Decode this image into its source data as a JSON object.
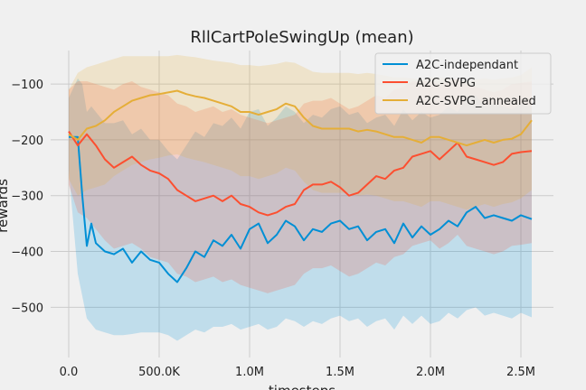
{
  "chart_data": {
    "type": "line",
    "title": "RllCartPoleSwingUp (mean)",
    "xlabel": "timesteps",
    "ylabel": "rewards",
    "xlim": [
      -100000,
      2680000
    ],
    "ylim": [
      -590,
      -40
    ],
    "xticks": [
      0,
      500000,
      1000000,
      1500000,
      2000000,
      2500000
    ],
    "xtick_labels": [
      "0.0",
      "500.0K",
      "1.0M",
      "1.5M",
      "2.0M",
      "2.5M"
    ],
    "yticks": [
      -500,
      -400,
      -300,
      -200,
      -100
    ],
    "ytick_labels": [
      "−500",
      "−400",
      "−300",
      "−200",
      "−100"
    ],
    "grid": true,
    "legend_position": "top-right",
    "series": [
      {
        "name": "A2C-independant",
        "color": "#008fd5",
        "x": [
          0,
          50000,
          75000,
          100000,
          125000,
          150000,
          200000,
          250000,
          300000,
          350000,
          400000,
          450000,
          500000,
          550000,
          600000,
          650000,
          700000,
          750000,
          800000,
          850000,
          900000,
          950000,
          1000000,
          1050000,
          1100000,
          1150000,
          1200000,
          1250000,
          1300000,
          1350000,
          1400000,
          1450000,
          1500000,
          1550000,
          1600000,
          1650000,
          1700000,
          1750000,
          1800000,
          1850000,
          1900000,
          1950000,
          2000000,
          2050000,
          2100000,
          2150000,
          2200000,
          2250000,
          2300000,
          2350000,
          2400000,
          2450000,
          2500000,
          2560000
        ],
        "y": [
          -195,
          -195,
          -300,
          -390,
          -350,
          -385,
          -400,
          -405,
          -395,
          -420,
          -400,
          -415,
          -420,
          -440,
          -455,
          -430,
          -400,
          -410,
          -380,
          -390,
          -370,
          -395,
          -360,
          -350,
          -385,
          -370,
          -345,
          -355,
          -380,
          -360,
          -365,
          -350,
          -345,
          -360,
          -355,
          -380,
          -365,
          -360,
          -385,
          -350,
          -375,
          -355,
          -370,
          -360,
          -345,
          -355,
          -330,
          -320,
          -340,
          -335,
          -340,
          -345,
          -335,
          -342
        ],
        "lower": [
          -255,
          -440,
          -480,
          -520,
          -530,
          -540,
          -545,
          -550,
          -550,
          -548,
          -545,
          -545,
          -545,
          -550,
          -560,
          -550,
          -540,
          -545,
          -535,
          -535,
          -530,
          -540,
          -535,
          -530,
          -540,
          -535,
          -520,
          -525,
          -535,
          -525,
          -530,
          -520,
          -515,
          -525,
          -520,
          -535,
          -525,
          -520,
          -540,
          -515,
          -530,
          -515,
          -530,
          -525,
          -510,
          -520,
          -505,
          -500,
          -515,
          -510,
          -515,
          -520,
          -510,
          -518
        ],
        "upper": [
          -125,
          -90,
          -100,
          -150,
          -140,
          -150,
          -170,
          -170,
          -165,
          -190,
          -180,
          -200,
          -200,
          -220,
          -235,
          -210,
          -185,
          -195,
          -170,
          -175,
          -160,
          -180,
          -150,
          -145,
          -175,
          -160,
          -140,
          -150,
          -170,
          -155,
          -160,
          -145,
          -140,
          -155,
          -150,
          -170,
          -160,
          -155,
          -175,
          -145,
          -165,
          -150,
          -160,
          -155,
          -140,
          -150,
          -125,
          -120,
          -140,
          -135,
          -140,
          -145,
          -135,
          -140
        ]
      },
      {
        "name": "A2C-SVPG",
        "color": "#fc4f30",
        "x": [
          0,
          50000,
          100000,
          150000,
          200000,
          250000,
          300000,
          350000,
          400000,
          450000,
          500000,
          550000,
          600000,
          650000,
          700000,
          750000,
          800000,
          850000,
          900000,
          950000,
          1000000,
          1050000,
          1100000,
          1150000,
          1200000,
          1250000,
          1300000,
          1350000,
          1400000,
          1450000,
          1500000,
          1550000,
          1600000,
          1650000,
          1700000,
          1750000,
          1800000,
          1850000,
          1900000,
          1950000,
          2000000,
          2050000,
          2100000,
          2150000,
          2200000,
          2250000,
          2300000,
          2350000,
          2400000,
          2450000,
          2500000,
          2560000
        ],
        "y": [
          -185,
          -210,
          -190,
          -210,
          -235,
          -250,
          -240,
          -230,
          -245,
          -255,
          -260,
          -270,
          -290,
          -300,
          -310,
          -305,
          -300,
          -310,
          -300,
          -315,
          -320,
          -330,
          -335,
          -330,
          -320,
          -315,
          -290,
          -280,
          -280,
          -275,
          -285,
          -300,
          -295,
          -280,
          -265,
          -270,
          -255,
          -250,
          -230,
          -225,
          -220,
          -235,
          -220,
          -205,
          -230,
          -235,
          -240,
          -245,
          -240,
          -225,
          -222,
          -220
        ],
        "lower": [
          -280,
          -330,
          -340,
          -360,
          -380,
          -395,
          -390,
          -385,
          -395,
          -410,
          -415,
          -420,
          -440,
          -445,
          -455,
          -450,
          -445,
          -455,
          -450,
          -460,
          -465,
          -470,
          -475,
          -470,
          -465,
          -460,
          -440,
          -430,
          -430,
          -425,
          -435,
          -445,
          -440,
          -430,
          -420,
          -425,
          -410,
          -405,
          -390,
          -385,
          -380,
          -395,
          -385,
          -370,
          -390,
          -395,
          -400,
          -405,
          -400,
          -390,
          -388,
          -385
        ],
        "upper": [
          -110,
          -95,
          -95,
          -100,
          -105,
          -110,
          -100,
          -95,
          -105,
          -110,
          -115,
          -120,
          -135,
          -140,
          -150,
          -145,
          -140,
          -150,
          -145,
          -155,
          -160,
          -165,
          -170,
          -165,
          -160,
          -155,
          -135,
          -130,
          -130,
          -125,
          -135,
          -145,
          -140,
          -130,
          -120,
          -125,
          -110,
          -105,
          -95,
          -95,
          -95,
          -100,
          -95,
          -90,
          -100,
          -105,
          -110,
          -115,
          -110,
          -100,
          -98,
          -95
        ]
      },
      {
        "name": "A2C-SVPG_annealed",
        "color": "#e5ae38",
        "x": [
          0,
          50000,
          100000,
          150000,
          200000,
          250000,
          300000,
          350000,
          400000,
          450000,
          500000,
          550000,
          600000,
          650000,
          700000,
          750000,
          800000,
          850000,
          900000,
          950000,
          1000000,
          1050000,
          1100000,
          1150000,
          1200000,
          1250000,
          1300000,
          1350000,
          1400000,
          1450000,
          1500000,
          1550000,
          1600000,
          1650000,
          1700000,
          1750000,
          1800000,
          1850000,
          1900000,
          1950000,
          2000000,
          2050000,
          2100000,
          2150000,
          2200000,
          2250000,
          2300000,
          2350000,
          2400000,
          2450000,
          2500000,
          2560000
        ],
        "y": [
          -190,
          -200,
          -180,
          -175,
          -165,
          -150,
          -140,
          -130,
          -125,
          -120,
          -118,
          -115,
          -112,
          -118,
          -122,
          -125,
          -130,
          -135,
          -140,
          -150,
          -150,
          -155,
          -150,
          -145,
          -135,
          -140,
          -160,
          -175,
          -180,
          -180,
          -180,
          -180,
          -185,
          -182,
          -185,
          -190,
          -195,
          -195,
          -200,
          -205,
          -195,
          -195,
          -200,
          -205,
          -210,
          -205,
          -200,
          -205,
          -200,
          -198,
          -190,
          -165
        ],
        "lower": [
          -270,
          -300,
          -290,
          -285,
          -280,
          -265,
          -255,
          -245,
          -240,
          -235,
          -232,
          -228,
          -226,
          -232,
          -236,
          -240,
          -245,
          -250,
          -255,
          -265,
          -265,
          -270,
          -265,
          -260,
          -250,
          -255,
          -275,
          -290,
          -295,
          -295,
          -295,
          -295,
          -300,
          -298,
          -300,
          -305,
          -310,
          -310,
          -315,
          -320,
          -310,
          -310,
          -315,
          -320,
          -325,
          -320,
          -315,
          -320,
          -315,
          -312,
          -305,
          -290
        ],
        "upper": [
          -110,
          -80,
          -70,
          -65,
          -60,
          -55,
          -50,
          -50,
          -50,
          -50,
          -50,
          -50,
          -48,
          -50,
          -52,
          -55,
          -58,
          -60,
          -62,
          -66,
          -66,
          -68,
          -66,
          -64,
          -60,
          -62,
          -70,
          -78,
          -80,
          -80,
          -80,
          -80,
          -82,
          -80,
          -82,
          -85,
          -88,
          -88,
          -90,
          -92,
          -88,
          -88,
          -90,
          -92,
          -95,
          -92,
          -90,
          -92,
          -90,
          -88,
          -84,
          -70
        ]
      }
    ]
  }
}
